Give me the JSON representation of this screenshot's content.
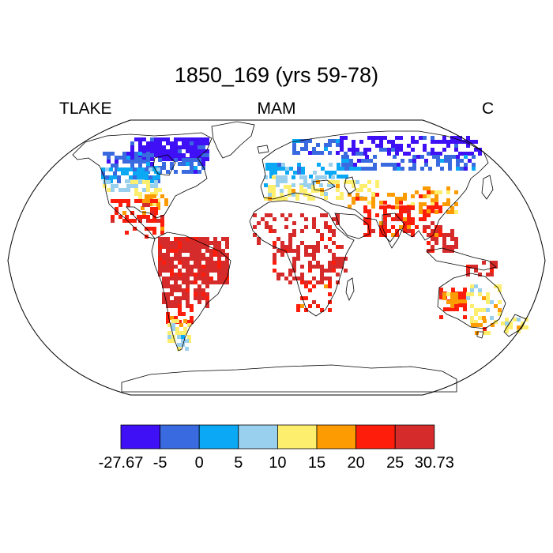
{
  "title": "1850_169 (yrs 59-78)",
  "left_label": "TLAKE",
  "center_label": "MAM",
  "right_label": "C",
  "colorbar": {
    "colors": [
      "#3f0ff5",
      "#3a6ae0",
      "#0aa8f5",
      "#99d0ee",
      "#fdee6e",
      "#fd9b02",
      "#fd1d0a",
      "#d52b2b"
    ],
    "tick_labels": [
      "-27.67",
      "-5",
      "0",
      "5",
      "10",
      "15",
      "20",
      "25",
      "30.73"
    ]
  },
  "map_data": {
    "projection": "Robinson",
    "variable": "TLAKE",
    "season": "MAM",
    "units": "C",
    "min": -27.67,
    "max": 30.73
  }
}
